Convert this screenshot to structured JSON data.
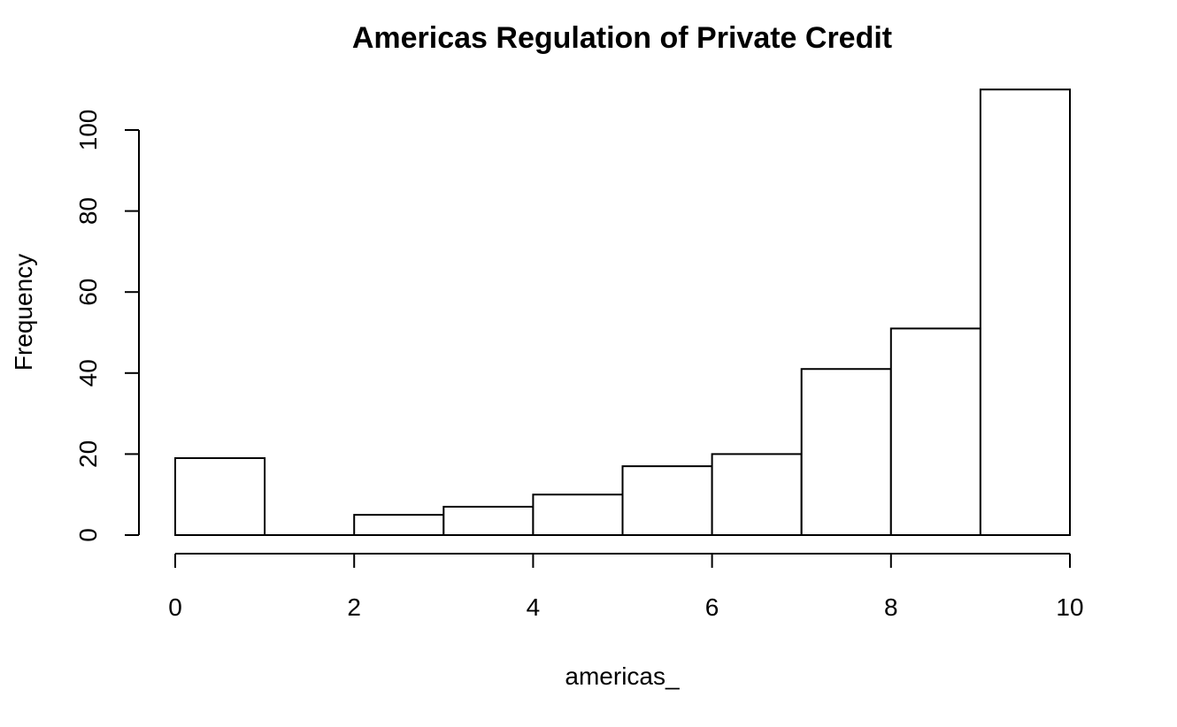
{
  "chart_data": {
    "type": "bar",
    "title": "Americas Regulation of Private Credit",
    "xlabel": "americas_",
    "ylabel": "Frequency",
    "bins": [
      {
        "x0": 0,
        "x1": 1,
        "count": 19
      },
      {
        "x0": 1,
        "x1": 2,
        "count": 0
      },
      {
        "x0": 2,
        "x1": 3,
        "count": 5
      },
      {
        "x0": 3,
        "x1": 4,
        "count": 7
      },
      {
        "x0": 4,
        "x1": 5,
        "count": 10
      },
      {
        "x0": 5,
        "x1": 6,
        "count": 17
      },
      {
        "x0": 6,
        "x1": 7,
        "count": 20
      },
      {
        "x0": 7,
        "x1": 8,
        "count": 41
      },
      {
        "x0": 8,
        "x1": 9,
        "count": 51
      },
      {
        "x0": 9,
        "x1": 10,
        "count": 110
      }
    ],
    "xlim": [
      0,
      10
    ],
    "ylim": [
      0,
      110
    ],
    "x_ticks": [
      0,
      2,
      4,
      6,
      8,
      10
    ],
    "y_ticks": [
      0,
      20,
      40,
      60,
      80,
      100
    ],
    "x_tick_labels": [
      "0",
      "2",
      "4",
      "6",
      "8",
      "10"
    ],
    "y_tick_labels": [
      "0",
      "20",
      "40",
      "60",
      "80",
      "100"
    ],
    "grid": false
  }
}
